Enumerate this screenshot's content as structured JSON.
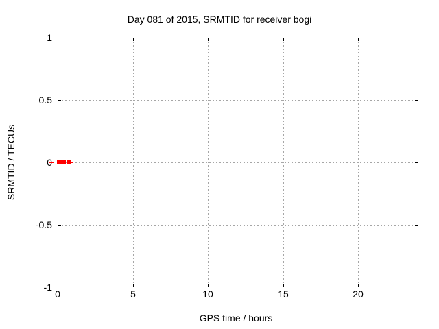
{
  "chart_data": {
    "type": "scatter",
    "title": "Day 081 of 2015, SRMTID for receiver bogi",
    "xlabel": "GPS time / hours",
    "ylabel": "SRMTID / TECUs",
    "xlim": [
      0,
      24
    ],
    "ylim": [
      -1,
      1
    ],
    "xtick_values": [
      0,
      5,
      10,
      15,
      20
    ],
    "xtick_labels": [
      "0",
      "5",
      "10",
      "15",
      "20"
    ],
    "ytick_values": [
      1,
      0.5,
      0,
      -0.5,
      -1
    ],
    "ytick_labels": [
      "1",
      "0.5",
      "0",
      "-0.5",
      "-1"
    ],
    "grid": "dashed-gray-at-major-ticks",
    "legend_position": "none",
    "colors": {
      "points": "#ff0000",
      "grid": "#a6a6a6",
      "axis": "#000000",
      "background": "#ffffff",
      "text": "#000000"
    },
    "series": [
      {
        "name": "SRMTID",
        "marker": "filled-square",
        "marker_size_px": 6,
        "color": "#ff0000",
        "points": [
          {
            "x": 0.09,
            "y": 0.0
          },
          {
            "x": 0.18,
            "y": 0.0
          },
          {
            "x": 0.27,
            "y": 0.0
          },
          {
            "x": 0.41,
            "y": 0.0
          },
          {
            "x": 0.75,
            "y": 0.0
          }
        ],
        "line_segments_hours": [
          {
            "x1": -0.6,
            "y1": 0.0,
            "x2": -0.27,
            "y2": 0.0
          },
          {
            "x1": 0.87,
            "y1": 0.0,
            "x2": 1.05,
            "y2": 0.0
          }
        ]
      }
    ]
  }
}
